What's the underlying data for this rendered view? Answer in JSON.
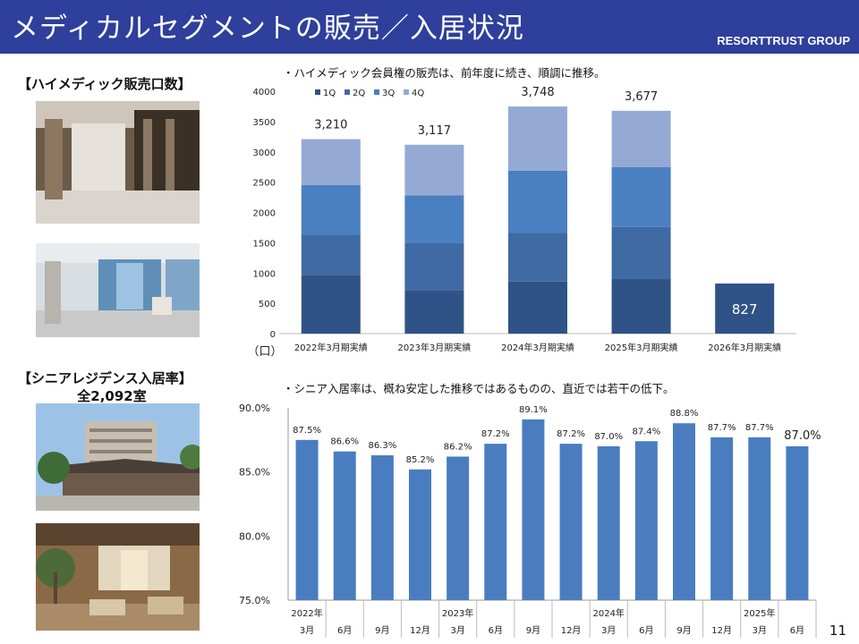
{
  "header": {
    "title": "メディカルセグメントの販売／入居状況",
    "brand": "RESORTTRUST GROUP"
  },
  "left": {
    "sales_title": "【ハイメディック販売口数】",
    "senior_title": "【シニアレジデンス入居率】",
    "senior_subtitle": "全2,092室"
  },
  "notes": {
    "top": "・ハイメディック会員権の販売は、前年度に続き、順調に推移。",
    "bottom": "・シニア入居率は、概ね安定した推移ではあるものの、直近では若干の低下。"
  },
  "page_number": "11",
  "colors": {
    "header": "#2e3f9c",
    "q1": "#2f5386",
    "q2": "#3f6aa3",
    "q3": "#4a7fc1",
    "q4": "#94aad4",
    "occupancy": "#4a7dc0"
  },
  "chart_data": [
    {
      "type": "bar",
      "stacked": true,
      "categories": [
        "2022年3月期実績",
        "2023年3月期実績",
        "2024年3月期実績",
        "2025年3月期実績",
        "2026年3月期実績"
      ],
      "series": [
        {
          "name": "1Q",
          "values": [
            970,
            720,
            860,
            900,
            827
          ]
        },
        {
          "name": "2Q",
          "values": [
            660,
            780,
            800,
            860,
            0
          ]
        },
        {
          "name": "3Q",
          "values": [
            820,
            780,
            1030,
            990,
            0
          ]
        },
        {
          "name": "4Q",
          "values": [
            760,
            837,
            1058,
            927,
            0
          ]
        }
      ],
      "totals": [
        "3,210",
        "3,117",
        "3,748",
        "3,677",
        "827"
      ],
      "ylim": [
        0,
        4000
      ],
      "yticks": [
        0,
        500,
        1000,
        1500,
        2000,
        2500,
        3000,
        3500,
        4000
      ],
      "ylabel": "（口）",
      "legend_position": "top-left"
    },
    {
      "type": "bar",
      "categories": [
        "3月",
        "6月",
        "9月",
        "12月",
        "3月",
        "6月",
        "9月",
        "12月",
        "3月",
        "6月",
        "9月",
        "12月",
        "3月",
        "6月"
      ],
      "year_labels": [
        {
          "at": 0,
          "label": "2022年"
        },
        {
          "at": 4,
          "label": "2023年"
        },
        {
          "at": 8,
          "label": "2024年"
        },
        {
          "at": 12,
          "label": "2025年"
        }
      ],
      "values": [
        87.5,
        86.6,
        86.3,
        85.2,
        86.2,
        87.2,
        89.1,
        87.2,
        87.0,
        87.4,
        88.8,
        87.7,
        87.7,
        87.0
      ],
      "value_labels": [
        "87.5%",
        "86.6%",
        "86.3%",
        "85.2%",
        "86.2%",
        "87.2%",
        "89.1%",
        "87.2%",
        "87.0%",
        "87.4%",
        "88.8%",
        "87.7%",
        "87.7%",
        "87.0%"
      ],
      "ylim": [
        75,
        90
      ],
      "yticks": [
        "75.0%",
        "80.0%",
        "85.0%",
        "90.0%"
      ]
    }
  ]
}
